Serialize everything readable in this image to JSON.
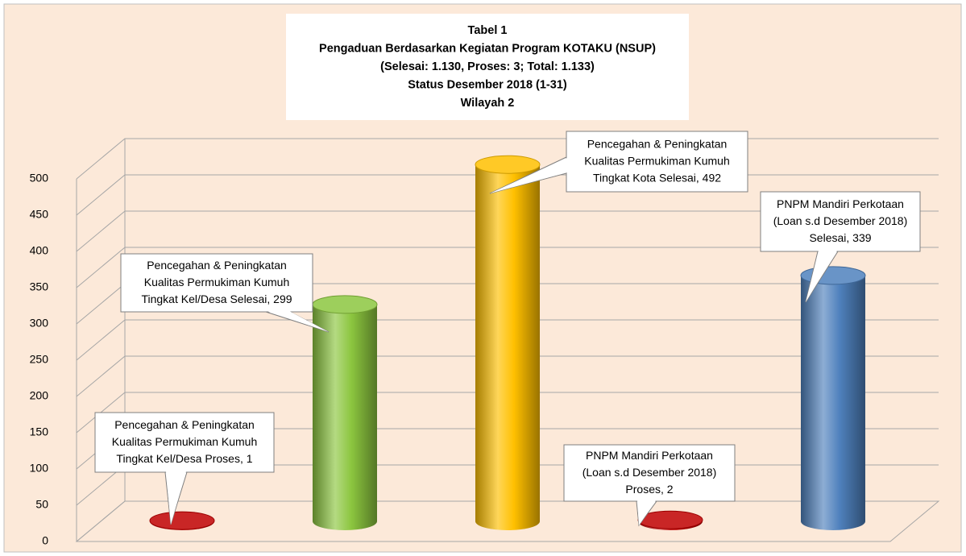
{
  "chart_data": {
    "type": "cylinder",
    "title": [
      "Tabel 1",
      "Pengaduan Berdasarkan Kegiatan Program KOTAKU (NSUP)",
      "(Selesai: 1.130, Proses: 3; Total: 1.133)",
      "Status Desember 2018 (1-31)",
      "Wilayah 2"
    ],
    "categories": [
      [
        "Pencegahan & Peningkatan",
        "Kualitas Permukiman Kumuh",
        "Tingkat Kel/Desa Proses"
      ],
      [
        "Pencegahan & Peningkatan",
        "Kualitas Permukiman Kumuh",
        "Tingkat Kel/Desa Selesai"
      ],
      [
        "Pencegahan & Peningkatan",
        "Kualitas Permukiman Kumuh",
        "Tingkat Kota Selesai"
      ],
      [
        "PNPM Mandiri Perkotaan",
        "(Loan s.d Desember 2018)",
        "Proses"
      ],
      [
        "PNPM Mandiri Perkotaan",
        "(Loan s.d Desember 2018)",
        "Selesai"
      ]
    ],
    "label_separator": ", ",
    "values": [
      1,
      299,
      492,
      2,
      339
    ],
    "colors": [
      "#c00000",
      "#8cc63f",
      "#ffc000",
      "#c00000",
      "#4f81bd"
    ],
    "ylim": [
      0,
      500
    ],
    "yticks": [
      0,
      50,
      100,
      150,
      200,
      250,
      300,
      350,
      400,
      450,
      500
    ],
    "grid": true
  }
}
